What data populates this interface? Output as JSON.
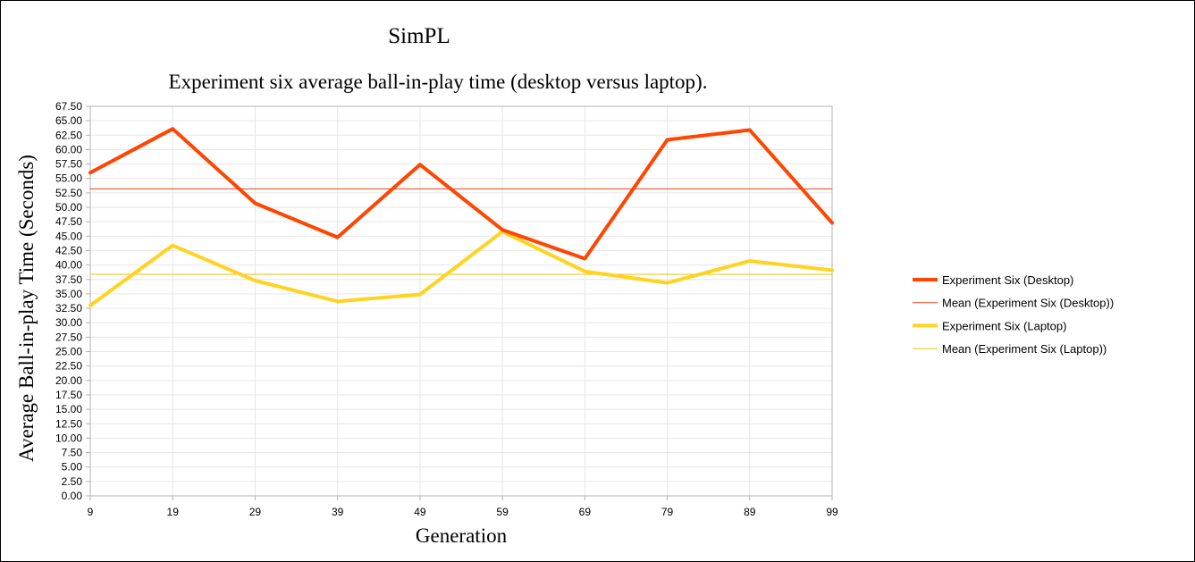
{
  "chart_data": {
    "type": "line",
    "title": "SimPL",
    "subtitle": "Experiment six average ball-in-play time (desktop versus laptop).",
    "xlabel": "Generation",
    "ylabel": "Average Ball-in-play Time (Seconds)",
    "x": [
      9,
      19,
      29,
      39,
      49,
      59,
      69,
      79,
      89,
      99
    ],
    "ylim": [
      0,
      67.5
    ],
    "ystep": 2.5,
    "grid": true,
    "legend_position": "right",
    "series": [
      {
        "name": "Experiment Six (Desktop)",
        "color": "#ff4500",
        "style": "thick",
        "values": [
          56.0,
          63.6,
          50.7,
          44.8,
          57.4,
          46.1,
          41.1,
          61.7,
          63.4,
          47.3
        ]
      },
      {
        "name": "Mean (Experiment Six (Desktop))",
        "color": "#e8421a",
        "style": "thin",
        "values": [
          53.2,
          53.2,
          53.2,
          53.2,
          53.2,
          53.2,
          53.2,
          53.2,
          53.2,
          53.2
        ]
      },
      {
        "name": "Experiment Six (Laptop)",
        "color": "#ffd320",
        "style": "thick",
        "values": [
          33.0,
          43.4,
          37.3,
          33.7,
          34.9,
          45.8,
          38.9,
          36.9,
          40.7,
          39.1
        ]
      },
      {
        "name": "Mean (Experiment Six (Laptop))",
        "color": "#f2c200",
        "style": "thin",
        "values": [
          38.4,
          38.4,
          38.4,
          38.4,
          38.4,
          38.4,
          38.4,
          38.4,
          38.4,
          38.4
        ]
      }
    ]
  }
}
